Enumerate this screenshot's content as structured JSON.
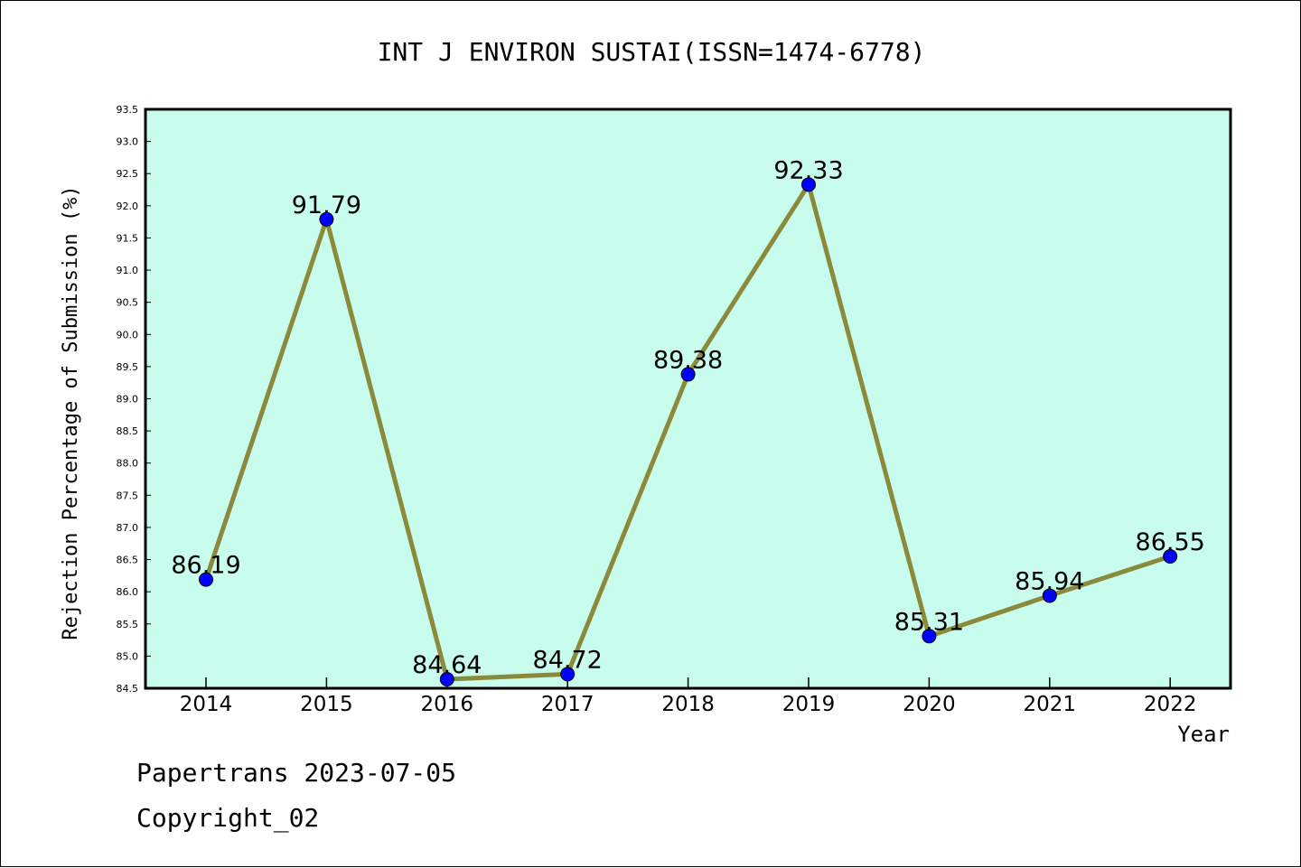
{
  "chart_data": {
    "type": "line",
    "title": "INT J ENVIRON SUSTAI(ISSN=1474-6778)",
    "xlabel": "Year",
    "ylabel": "Rejection Percentage of Submission (%)",
    "categories": [
      "2014",
      "2015",
      "2016",
      "2017",
      "2018",
      "2019",
      "2020",
      "2021",
      "2022"
    ],
    "values": [
      86.19,
      91.79,
      84.64,
      84.72,
      89.38,
      92.33,
      85.31,
      85.94,
      86.55
    ],
    "data_labels": [
      "86.19",
      "91.79",
      "84.64",
      "84.72",
      "89.38",
      "92.33",
      "85.31",
      "85.94",
      "86.55"
    ],
    "ylim": [
      84.5,
      93.5
    ],
    "yticks": [
      "84.5",
      "85.0",
      "85.5",
      "86.0",
      "86.5",
      "87.0",
      "87.5",
      "88.0",
      "88.5",
      "89.0",
      "89.5",
      "90.0",
      "90.5",
      "91.0",
      "91.5",
      "92.0",
      "92.5",
      "93.0",
      "93.5"
    ],
    "grid": false,
    "colors": {
      "plot_background": "#c8fcec",
      "line": "#8b8a3a",
      "marker": "#0000ff"
    }
  },
  "footer": {
    "line1": "Papertrans 2023-07-05",
    "line2": "Copyright_02"
  }
}
